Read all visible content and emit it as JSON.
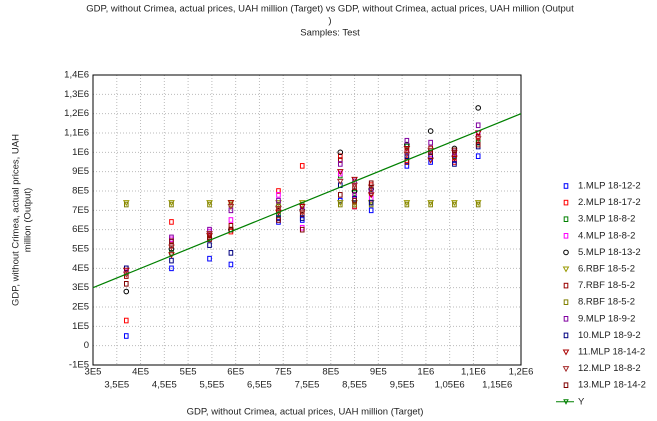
{
  "chart_data": {
    "type": "scatter",
    "title": [
      "GDP, without Crimea, actual prices, UAH million (Target) vs GDP, without Crimea, actual prices, UAH million (Output",
      ")"
    ],
    "subtitle": "Samples: Test",
    "xlabel": "GDP, without Crimea, actual prices, UAH million (Target)",
    "ylabel": [
      "GDP, without Crimea, actual prices, UAH",
      "million (Output)"
    ],
    "xlim": [
      300000,
      1200000
    ],
    "ylim": [
      -100000,
      1400000
    ],
    "grid": true,
    "legend": "right",
    "xticks": [
      {
        "value": 300000,
        "label": "3E5"
      },
      {
        "value": 350000,
        "label": "3,5E5"
      },
      {
        "value": 400000,
        "label": "4E5"
      },
      {
        "value": 450000,
        "label": "4,5E5"
      },
      {
        "value": 500000,
        "label": "5E5"
      },
      {
        "value": 550000,
        "label": "5,5E5"
      },
      {
        "value": 600000,
        "label": "6E5"
      },
      {
        "value": 650000,
        "label": "6,5E5"
      },
      {
        "value": 700000,
        "label": "7E5"
      },
      {
        "value": 750000,
        "label": "7,5E5"
      },
      {
        "value": 800000,
        "label": "8E5"
      },
      {
        "value": 850000,
        "label": "8,5E5"
      },
      {
        "value": 900000,
        "label": "9E5"
      },
      {
        "value": 950000,
        "label": "9,5E5"
      },
      {
        "value": 1000000,
        "label": "1E6"
      },
      {
        "value": 1050000,
        "label": "1,05E6"
      },
      {
        "value": 1100000,
        "label": "1,1E6"
      },
      {
        "value": 1150000,
        "label": "1,15E6"
      },
      {
        "value": 1200000,
        "label": "1,2E6"
      }
    ],
    "yticks": [
      {
        "value": 1400000,
        "label": "1,4E6"
      },
      {
        "value": 1300000,
        "label": "1,3E6"
      },
      {
        "value": 1200000,
        "label": "1,2E6"
      },
      {
        "value": 1100000,
        "label": "1,1E6"
      },
      {
        "value": 1000000,
        "label": "1E6"
      },
      {
        "value": 900000,
        "label": "9E5"
      },
      {
        "value": 800000,
        "label": "8E5"
      },
      {
        "value": 700000,
        "label": "7E5"
      },
      {
        "value": 600000,
        "label": "6E5"
      },
      {
        "value": 500000,
        "label": "5E5"
      },
      {
        "value": 400000,
        "label": "4E5"
      },
      {
        "value": 300000,
        "label": "3E5"
      },
      {
        "value": 200000,
        "label": "2E5"
      },
      {
        "value": 100000,
        "label": "1E5"
      },
      0,
      {
        "value": -100000,
        "label": "-1E5"
      }
    ],
    "series": [
      {
        "name": "1.MLP 18-12-2",
        "color": "#0000ff",
        "marker": "square",
        "x": [
          370000,
          465000,
          545000,
          590000,
          690000,
          740000,
          820000,
          850000,
          885000,
          960000,
          1010000,
          1060000,
          1110000
        ],
        "values": [
          50000,
          400000,
          450000,
          420000,
          640000,
          650000,
          750000,
          720000,
          700000,
          930000,
          950000,
          960000,
          980000
        ]
      },
      {
        "name": "2.MLP 18-17-2",
        "color": "#ff0000",
        "marker": "square",
        "x": [
          370000,
          465000,
          545000,
          590000,
          690000,
          740000,
          820000,
          850000,
          885000,
          960000,
          1010000,
          1060000,
          1110000
        ],
        "values": [
          130000,
          640000,
          570000,
          590000,
          800000,
          930000,
          980000,
          720000,
          830000,
          960000,
          1000000,
          950000,
          1060000
        ]
      },
      {
        "name": "3.MLP 18-8-2",
        "color": "#008000",
        "marker": "square",
        "x": [
          370000,
          465000,
          545000,
          590000,
          690000,
          740000,
          820000,
          850000,
          885000,
          960000,
          1010000,
          1060000,
          1110000
        ],
        "values": [
          380000,
          480000,
          560000,
          600000,
          680000,
          700000,
          880000,
          790000,
          800000,
          1030000,
          1000000,
          980000,
          1050000
        ]
      },
      {
        "name": "4.MLP 18-8-2",
        "color": "#ff00ff",
        "marker": "square",
        "x": [
          370000,
          465000,
          545000,
          590000,
          690000,
          740000,
          820000,
          850000,
          885000,
          960000,
          1010000,
          1060000,
          1110000
        ],
        "values": [
          380000,
          550000,
          590000,
          650000,
          780000,
          610000,
          890000,
          780000,
          760000,
          1000000,
          990000,
          1000000,
          1100000
        ]
      },
      {
        "name": "5.MLP 18-13-2",
        "color": "#000000",
        "marker": "circle",
        "x": [
          370000,
          465000,
          545000,
          590000,
          690000,
          740000,
          820000,
          850000,
          885000,
          960000,
          1010000,
          1060000,
          1110000
        ],
        "values": [
          280000,
          500000,
          580000,
          600000,
          720000,
          700000,
          1000000,
          800000,
          810000,
          1040000,
          1110000,
          1020000,
          1230000
        ]
      },
      {
        "name": "6.RBF 18-5-2",
        "color": "#999900",
        "marker": "triangle",
        "x": [
          370000,
          465000,
          545000,
          590000,
          690000,
          740000,
          820000,
          850000,
          885000,
          960000,
          1010000,
          1060000,
          1110000
        ],
        "values": [
          740000,
          740000,
          740000,
          740000,
          740000,
          740000,
          740000,
          740000,
          740000,
          740000,
          740000,
          740000,
          740000
        ]
      },
      {
        "name": "7.RBF 18-5-2",
        "color": "#990000",
        "marker": "square",
        "x": [
          370000,
          465000,
          545000,
          590000,
          690000,
          740000,
          820000,
          850000,
          885000,
          960000,
          1010000,
          1060000,
          1110000
        ],
        "values": [
          360000,
          520000,
          560000,
          620000,
          700000,
          680000,
          960000,
          820000,
          790000,
          1010000,
          1020000,
          990000,
          1080000
        ]
      },
      {
        "name": "8.RBF 18-5-2",
        "color": "#808000",
        "marker": "square",
        "x": [
          370000,
          465000,
          545000,
          590000,
          690000,
          740000,
          820000,
          850000,
          885000,
          960000,
          1010000,
          1060000,
          1110000
        ],
        "values": [
          730000,
          730000,
          730000,
          730000,
          730000,
          730000,
          730000,
          730000,
          730000,
          730000,
          730000,
          730000,
          730000
        ]
      },
      {
        "name": "9.MLP 18-9-2",
        "color": "#8000a0",
        "marker": "square",
        "x": [
          370000,
          465000,
          545000,
          590000,
          690000,
          740000,
          820000,
          850000,
          885000,
          960000,
          1010000,
          1060000,
          1110000
        ],
        "values": [
          400000,
          560000,
          600000,
          700000,
          750000,
          720000,
          940000,
          850000,
          800000,
          1060000,
          1050000,
          1000000,
          1140000
        ]
      },
      {
        "name": "10.MLP 18-9-2",
        "color": "#000080",
        "marker": "square",
        "x": [
          370000,
          465000,
          545000,
          590000,
          690000,
          740000,
          820000,
          850000,
          885000,
          960000,
          1010000,
          1060000,
          1110000
        ],
        "values": [
          400000,
          440000,
          520000,
          480000,
          660000,
          660000,
          830000,
          760000,
          740000,
          980000,
          980000,
          940000,
          1030000
        ]
      },
      {
        "name": "11.MLP 18-14-2",
        "color": "#aa0000",
        "marker": "triangle",
        "x": [
          370000,
          465000,
          545000,
          590000,
          690000,
          740000,
          820000,
          850000,
          885000,
          960000,
          1010000,
          1060000,
          1110000
        ],
        "values": [
          390000,
          470000,
          570000,
          740000,
          690000,
          720000,
          900000,
          860000,
          780000,
          1020000,
          960000,
          970000,
          1100000
        ]
      },
      {
        "name": "12.MLP 18-8-2",
        "color": "#a52a2a",
        "marker": "triangle",
        "x": [
          370000,
          465000,
          545000,
          590000,
          690000,
          740000,
          820000,
          850000,
          885000,
          960000,
          1010000,
          1060000,
          1110000
        ],
        "values": [
          370000,
          510000,
          580000,
          720000,
          710000,
          690000,
          850000,
          830000,
          820000,
          990000,
          1010000,
          1000000,
          1070000
        ]
      },
      {
        "name": "13.MLP 18-14-2",
        "color": "#800000",
        "marker": "square",
        "x": [
          370000,
          465000,
          545000,
          590000,
          690000,
          740000,
          820000,
          850000,
          885000,
          960000,
          1010000,
          1060000,
          1110000
        ],
        "values": [
          320000,
          540000,
          550000,
          600000,
          650000,
          600000,
          780000,
          750000,
          840000,
          950000,
          1000000,
          1010000,
          1040000
        ]
      },
      {
        "name": "Y",
        "color": "#008000",
        "type": "line",
        "x": [
          300000,
          1200000
        ],
        "values": [
          300000,
          1200000
        ]
      }
    ]
  }
}
